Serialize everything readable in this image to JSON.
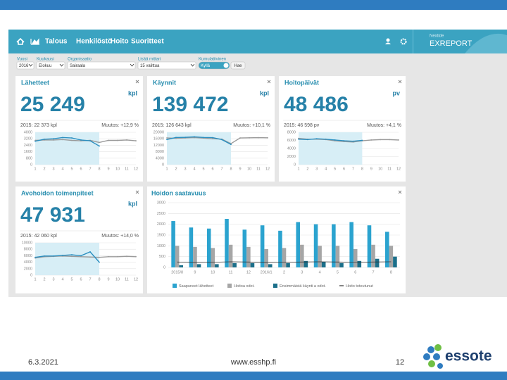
{
  "slide": {
    "date": "6.3.2021",
    "url": "www.esshp.fi",
    "page": "12",
    "logo": "essote"
  },
  "app": {
    "brand_small": "Nextide",
    "brand": "EXREPORT",
    "nav": [
      "Talous",
      "Henkilöstö",
      "Hoito",
      "Suoritteet"
    ],
    "filters": [
      {
        "label": "Vuosi",
        "value": "2016"
      },
      {
        "label": "Kuukausi",
        "value": "Elokuu"
      },
      {
        "label": "Organisaatio",
        "value": "Sairaala"
      },
      {
        "label": "Lisää mittari",
        "value": "15 valittua"
      },
      {
        "label": "Kumulatiivinen",
        "value": "Kyllä"
      }
    ],
    "button": "Hae"
  },
  "cards": [
    {
      "title": "Lähetteet",
      "value": "25 249",
      "unit": "kpl",
      "previous": "2015: 22 373 kpl",
      "change": "Muutos: +12,9 %",
      "chart": {
        "type": "line",
        "categories": [
          "1",
          "2",
          "3",
          "4",
          "5",
          "6",
          "7",
          "8",
          "9",
          "10",
          "11",
          "12"
        ],
        "ylim": [
          0,
          4000
        ],
        "yticks": [
          0,
          800,
          1600,
          2400,
          3200,
          4000
        ],
        "series": [
          {
            "color": "#9a9a9a",
            "values": [
              3000,
              3050,
              3050,
              3100,
              3000,
              2950,
              3000,
              2750,
              3000,
              3000,
              3050,
              2950
            ]
          },
          {
            "color": "#2b8fc0",
            "values": [
              2900,
              3150,
              3200,
              3350,
              3300,
              3050,
              2950,
              2300
            ]
          }
        ]
      }
    },
    {
      "title": "Käynnit",
      "value": "139 472",
      "unit": "kpl",
      "previous": "2015: 126 643 kpl",
      "change": "Muutos: +10,1 %",
      "chart": {
        "type": "line",
        "categories": [
          "1",
          "2",
          "3",
          "4",
          "5",
          "6",
          "7",
          "8",
          "9",
          "10",
          "11",
          "12"
        ],
        "ylim": [
          0,
          20000
        ],
        "yticks": [
          0,
          4000,
          8000,
          12000,
          16000,
          20000
        ],
        "series": [
          {
            "color": "#9a9a9a",
            "values": [
              16500,
              16300,
              16500,
              16700,
              16400,
              16000,
              15800,
              13000,
              16500,
              16600,
              16700,
              16600
            ]
          },
          {
            "color": "#2b8fc0",
            "values": [
              15500,
              16800,
              16900,
              17200,
              16800,
              16700,
              15500,
              12500
            ]
          }
        ]
      }
    },
    {
      "title": "Hoitopäivät",
      "value": "48 486",
      "unit": "pv",
      "previous": "2015: 46 598 pv",
      "change": "Muutos: +4,1 %",
      "chart": {
        "type": "line",
        "categories": [
          "1",
          "2",
          "3",
          "4",
          "5",
          "6",
          "7",
          "8",
          "9",
          "10",
          "11",
          "12"
        ],
        "ylim": [
          0,
          8000
        ],
        "yticks": [
          0,
          2000,
          4000,
          6000,
          8000
        ],
        "series": [
          {
            "color": "#9a9a9a",
            "values": [
              6500,
              6300,
              6300,
              6200,
              5900,
              5700,
              5600,
              5900,
              6100,
              6200,
              6200,
              6100
            ]
          },
          {
            "color": "#2b8fc0",
            "values": [
              6300,
              6200,
              6400,
              6300,
              6100,
              5900,
              5800,
              6000
            ]
          }
        ]
      }
    },
    {
      "title": "Avohoidon toimenpiteet",
      "value": "47 931",
      "unit": "kpl",
      "previous": "2015: 42 060 kpl",
      "change": "Muutos: +14,0 %",
      "chart": {
        "type": "line",
        "categories": [
          "1",
          "2",
          "3",
          "4",
          "5",
          "6",
          "7",
          "8",
          "9",
          "10",
          "11",
          "12"
        ],
        "ylim": [
          0,
          10000
        ],
        "yticks": [
          0,
          2000,
          4000,
          6000,
          8000,
          10000
        ],
        "series": [
          {
            "color": "#9a9a9a",
            "values": [
              5300,
              5700,
              5800,
              5900,
              5800,
              5700,
              5600,
              5500,
              5700,
              5700,
              5800,
              5700
            ]
          },
          {
            "color": "#2b8fc0",
            "values": [
              5500,
              5900,
              5900,
              6100,
              6300,
              6000,
              7200,
              4000
            ]
          }
        ]
      }
    }
  ],
  "availability": {
    "title": "Hoidon saatavuus",
    "chart": {
      "type": "bar",
      "categories": [
        "2015/8",
        "9",
        "10",
        "11",
        "12",
        "2016/1",
        "2",
        "3",
        "4",
        "5",
        "6",
        "7",
        "8"
      ],
      "ylim": [
        0,
        3000
      ],
      "yticks": [
        0,
        500,
        1000,
        1500,
        2000,
        2500,
        3000
      ],
      "series": [
        {
          "name": "Saapuneet lähetteet",
          "color": "#2ba3cf",
          "values": [
            2150,
            1850,
            1800,
            2250,
            1750,
            1950,
            1700,
            2100,
            2000,
            2000,
            2100,
            1950,
            1650
          ]
        },
        {
          "name": "Hoitoa odot.",
          "color": "#a6a6a6",
          "values": [
            1000,
            950,
            900,
            1050,
            950,
            850,
            900,
            1050,
            1000,
            1000,
            850,
            1050,
            1000
          ]
        },
        {
          "name": "Ensimmäistä käynti a odot.",
          "color": "#1b6f8a",
          "values": [
            100,
            150,
            150,
            200,
            200,
            150,
            200,
            300,
            250,
            200,
            300,
            400,
            500
          ]
        },
        {
          "name": "Hoito toteutunut",
          "color": "#333333",
          "type": "line",
          "values": [
            250,
            230,
            240,
            260,
            250,
            230,
            240,
            250,
            260,
            250,
            240,
            250,
            260
          ]
        }
      ]
    }
  }
}
